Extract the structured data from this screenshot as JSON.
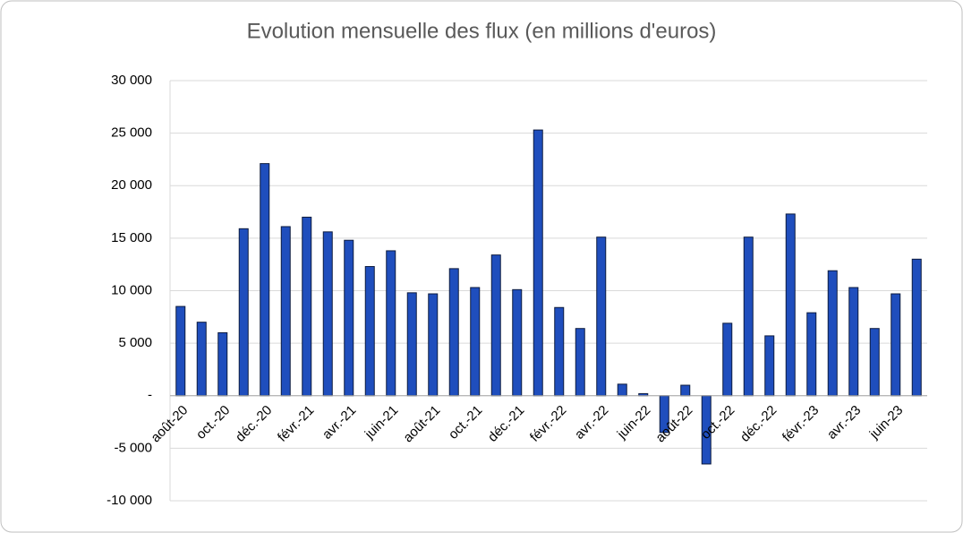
{
  "chart_data": {
    "type": "bar",
    "title": "Evolution mensuelle des flux (en millions d'euros)",
    "categories": [
      "août-20",
      null,
      "oct.-20",
      null,
      "déc.-20",
      null,
      "févr.-21",
      null,
      "avr.-21",
      null,
      "juin-21",
      null,
      "août-21",
      null,
      "oct.-21",
      null,
      "déc.-21",
      null,
      "févr.-22",
      null,
      "avr.-22",
      null,
      "juin-22",
      null,
      "août-22",
      null,
      "oct.-22",
      null,
      "déc.-22",
      null,
      "févr.-23",
      null,
      "avr.-23",
      null,
      "juin-23",
      null
    ],
    "values": [
      8500,
      7000,
      6000,
      15900,
      22100,
      16100,
      17000,
      15600,
      14800,
      12300,
      13800,
      9800,
      9700,
      12100,
      10300,
      13400,
      10100,
      25300,
      8400,
      6400,
      15100,
      1100,
      200,
      -3500,
      1000,
      -6500,
      6900,
      15100,
      5700,
      17300,
      7900,
      11900,
      10300,
      6400,
      9700,
      13000
    ],
    "color": "#1f4ebd",
    "ylim": [
      -10000,
      30000
    ],
    "yticks": [
      {
        "value": -10000,
        "label": "-10 000"
      },
      {
        "value": -5000,
        "label": "-5 000"
      },
      {
        "value": 0,
        "label": "-"
      },
      {
        "value": 5000,
        "label": "5 000"
      },
      {
        "value": 10000,
        "label": "10 000"
      },
      {
        "value": 15000,
        "label": "15 000"
      },
      {
        "value": 20000,
        "label": "20 000"
      },
      {
        "value": 25000,
        "label": "25 000"
      },
      {
        "value": 30000,
        "label": "30 000"
      }
    ],
    "grid": true
  }
}
